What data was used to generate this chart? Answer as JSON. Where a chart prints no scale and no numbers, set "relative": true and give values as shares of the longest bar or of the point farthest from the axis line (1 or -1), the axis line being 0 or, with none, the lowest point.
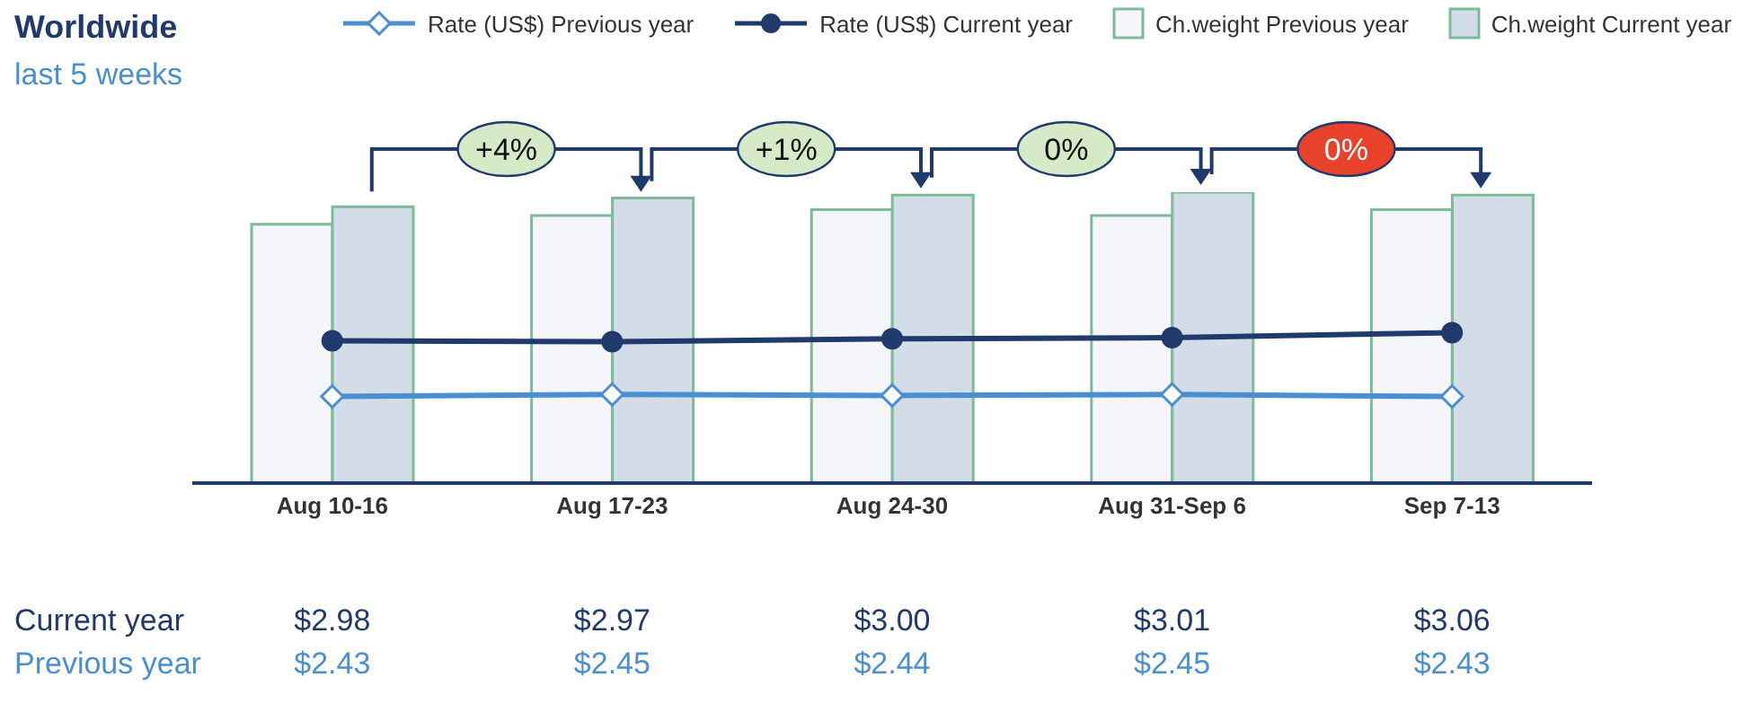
{
  "chart_data": [
    {
      "type": "bar",
      "title": "Worldwide",
      "subtitle": "last 5 weeks",
      "categories": [
        "Aug 10-16",
        "Aug 17-23",
        "Aug 24-30",
        "Aug 31-Sep 6",
        "Sep 7-13"
      ],
      "relative": true,
      "series": [
        {
          "name": "Ch.weight Previous year",
          "color": "#f4f6fa",
          "values": [
            0.89,
            0.92,
            0.94,
            0.92,
            0.94
          ]
        },
        {
          "name": "Ch.weight Current year",
          "color": "#d3dde8",
          "values": [
            0.95,
            0.98,
            0.99,
            1,
            0.99
          ]
        }
      ],
      "legend": "top",
      "annotations": [
        "+4%",
        "+1%",
        "0%",
        "0%"
      ]
    },
    {
      "type": "line",
      "categories": [
        null,
        null,
        null,
        null,
        null
      ],
      "series": [
        {
          "name": "Rate (US$) Previous year",
          "color": "#4a8fd0",
          "marker": "diamond",
          "values": [
            2.43,
            2.45,
            2.44,
            2.45,
            2.43
          ],
          "value_labels": [
            "$2.43",
            "$2.45",
            "$2.44",
            "$2.45",
            "$2.43"
          ]
        },
        {
          "name": "Rate (US$) Current year",
          "color": "#1f3a6b",
          "marker": "circle",
          "values": [
            2.98,
            2.97,
            3.0,
            3.01,
            3.06
          ],
          "value_labels": [
            "$2.98",
            "$2.97",
            "$3.00",
            "$3.01",
            "$3.06"
          ]
        }
      ],
      "tick_labels": false,
      "legend": "top",
      "annotations": [
        "Current year",
        "Previous year"
      ]
    }
  ]
}
